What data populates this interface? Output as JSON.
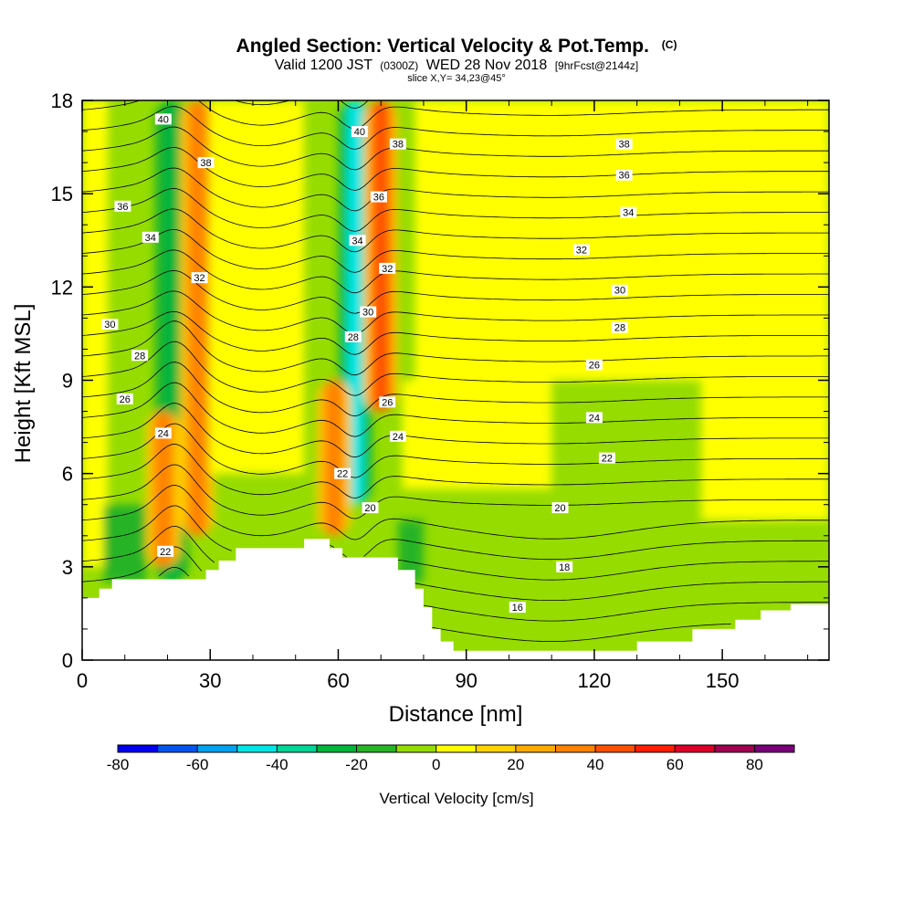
{
  "chart_data": {
    "type": "heatmap",
    "title": "Angled Section: Vertical Velocity & Pot.Temp.",
    "title_badge": "(C)",
    "subtitle_parts": [
      "Valid 1200 JST",
      "(0300Z)",
      "WED 28 Nov 2018",
      "[9hrFcst@2144z]"
    ],
    "slice_label": "slice X,Y= 34,23@45°",
    "xlabel": "Distance [nm]",
    "ylabel": "Height [Kft MSL]",
    "xlim": [
      0,
      175
    ],
    "ylim": [
      0,
      18
    ],
    "x_ticks": [
      0,
      30,
      60,
      90,
      120,
      150
    ],
    "x_tick_labels": [
      "0",
      "30",
      "60",
      "90",
      "120",
      "150"
    ],
    "y_ticks": [
      0,
      3,
      6,
      9,
      12,
      15,
      18
    ],
    "y_tick_labels": [
      "0",
      "3",
      "6",
      "9",
      "12",
      "15",
      "18"
    ],
    "colorbar": {
      "label": "Vertical Velocity [cm/s]",
      "min": -80,
      "max": 90,
      "step": 10,
      "tick_values": [
        -80,
        -60,
        -40,
        -20,
        0,
        20,
        40,
        60,
        80
      ],
      "tick_labels": [
        "-80",
        "-60",
        "-40",
        "-20",
        "0",
        "20",
        "40",
        "60",
        "80"
      ],
      "colors": [
        "#0000ee",
        "#0055ee",
        "#00a3ee",
        "#00e6e6",
        "#00d496",
        "#00b43c",
        "#28b428",
        "#96dc00",
        "#ffff00",
        "#ffd200",
        "#ffaa00",
        "#ff8200",
        "#ff5000",
        "#ff1e00",
        "#dc0028",
        "#a00050",
        "#780078"
      ]
    },
    "isentropes": [
      {
        "label": "16",
        "value": 16,
        "label_at": [
          102,
          1.7
        ]
      },
      {
        "label": "18",
        "value": 18,
        "label_at": [
          113,
          3.0
        ]
      },
      {
        "label": "20",
        "value": 20,
        "label_at": [
          112,
          4.9
        ]
      },
      {
        "label": "22",
        "value": 22,
        "label_at": [
          123,
          6.5
        ]
      },
      {
        "label": "24",
        "value": 24,
        "label_at": [
          120,
          7.8
        ]
      },
      {
        "label": "26",
        "value": 26,
        "label_at": [
          120,
          9.5
        ]
      },
      {
        "label": "28",
        "value": 28,
        "label_at": [
          126,
          10.7
        ]
      },
      {
        "label": "30",
        "value": 30,
        "label_at": [
          126,
          11.9
        ]
      },
      {
        "label": "32",
        "value": 32,
        "label_at": [
          117,
          13.2
        ]
      },
      {
        "label": "34",
        "value": 34,
        "label_at": [
          128,
          14.4
        ]
      },
      {
        "label": "36",
        "value": 36,
        "label_at": [
          127,
          15.6
        ]
      },
      {
        "label": "38",
        "value": 38,
        "label_at": [
          127,
          16.6
        ]
      },
      {
        "label": "40",
        "value": 40,
        "label_at": [
          19,
          17.4
        ]
      }
    ],
    "extra_contour_labels": [
      {
        "label": "22",
        "at": [
          19.5,
          3.5
        ]
      },
      {
        "label": "24",
        "at": [
          19,
          7.3
        ]
      },
      {
        "label": "26",
        "at": [
          10,
          8.4
        ]
      },
      {
        "label": "28",
        "at": [
          13.5,
          9.8
        ]
      },
      {
        "label": "30",
        "at": [
          6.5,
          10.8
        ]
      },
      {
        "label": "32",
        "at": [
          27.5,
          12.3
        ]
      },
      {
        "label": "34",
        "at": [
          16,
          13.6
        ]
      },
      {
        "label": "36",
        "at": [
          9.5,
          14.6
        ]
      },
      {
        "label": "38",
        "at": [
          29,
          16.0
        ]
      },
      {
        "label": "22",
        "at": [
          61,
          6.0
        ]
      },
      {
        "label": "20",
        "at": [
          67.5,
          4.9
        ]
      },
      {
        "label": "24",
        "at": [
          74,
          7.2
        ]
      },
      {
        "label": "26",
        "at": [
          71.5,
          8.3
        ]
      },
      {
        "label": "28",
        "at": [
          63.5,
          10.4
        ]
      },
      {
        "label": "30",
        "at": [
          67,
          11.2
        ]
      },
      {
        "label": "32",
        "at": [
          71.5,
          12.6
        ]
      },
      {
        "label": "34",
        "at": [
          64.5,
          13.5
        ]
      },
      {
        "label": "36",
        "at": [
          69.5,
          14.9
        ]
      },
      {
        "label": "38",
        "at": [
          74,
          16.6
        ]
      },
      {
        "label": "40",
        "at": [
          65,
          17.0
        ]
      }
    ],
    "w_features": [
      {
        "type": "downdraft",
        "x": 21,
        "height_range": [
          2.5,
          18
        ],
        "peak": -25
      },
      {
        "type": "updraft",
        "x": 27,
        "height_range": [
          4,
          18
        ],
        "peak": 30
      },
      {
        "type": "updraft",
        "x": 19,
        "height_range": [
          3,
          8
        ],
        "peak": 30
      },
      {
        "type": "downdraft",
        "x": 64,
        "height_range": [
          5,
          18
        ],
        "peak": -40
      },
      {
        "type": "updraft",
        "x": 70,
        "height_range": [
          8,
          18
        ],
        "peak": 45
      },
      {
        "type": "updraft",
        "x": 59,
        "height_range": [
          4,
          9
        ],
        "peak": 30
      }
    ],
    "terrain": [
      [
        0,
        2.0
      ],
      [
        4,
        2.0
      ],
      [
        4,
        2.3
      ],
      [
        7,
        2.3
      ],
      [
        7,
        2.6
      ],
      [
        29,
        2.6
      ],
      [
        29,
        2.9
      ],
      [
        32,
        2.9
      ],
      [
        32,
        3.2
      ],
      [
        36,
        3.2
      ],
      [
        36,
        3.6
      ],
      [
        52,
        3.6
      ],
      [
        52,
        3.9
      ],
      [
        58,
        3.9
      ],
      [
        58,
        3.6
      ],
      [
        61,
        3.6
      ],
      [
        61,
        3.3
      ],
      [
        74,
        3.3
      ],
      [
        74,
        2.9
      ],
      [
        78,
        2.9
      ],
      [
        78,
        2.3
      ],
      [
        80,
        2.3
      ],
      [
        80,
        1.7
      ],
      [
        82,
        1.7
      ],
      [
        82,
        1.0
      ],
      [
        84,
        1.0
      ],
      [
        84,
        0.6
      ],
      [
        87,
        0.6
      ],
      [
        87,
        0.3
      ],
      [
        130,
        0.3
      ],
      [
        130,
        0.6
      ],
      [
        143,
        0.6
      ],
      [
        143,
        1.0
      ],
      [
        153,
        1.0
      ],
      [
        153,
        1.3
      ],
      [
        159,
        1.3
      ],
      [
        159,
        1.6
      ],
      [
        166,
        1.6
      ],
      [
        166,
        1.8
      ],
      [
        175,
        1.8
      ]
    ],
    "grid": false,
    "legend": "bottom"
  }
}
